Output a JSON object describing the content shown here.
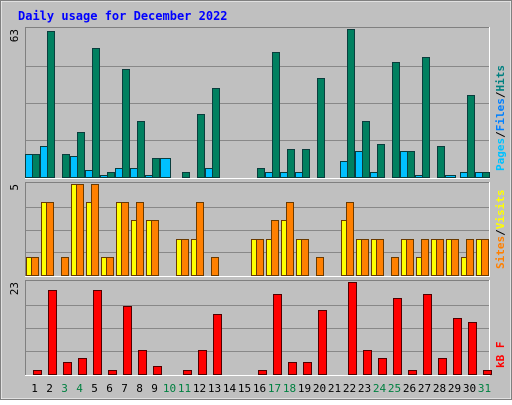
{
  "chart_data": {
    "type": "bar",
    "title": "Daily usage for December 2022",
    "categories": [
      "1",
      "2",
      "3",
      "4",
      "5",
      "6",
      "7",
      "8",
      "9",
      "10",
      "11",
      "12",
      "13",
      "14",
      "15",
      "16",
      "17",
      "18",
      "19",
      "20",
      "21",
      "22",
      "23",
      "24",
      "25",
      "26",
      "27",
      "28",
      "29",
      "30",
      "31"
    ],
    "weekend_days": [
      "3",
      "4",
      "10",
      "11",
      "17",
      "18",
      "24",
      "25",
      "31"
    ],
    "panels": [
      {
        "id": "hits",
        "ymax_label": "63",
        "ymax": 63,
        "legend": [
          {
            "text": "Pages",
            "color": "#00c0ff"
          },
          {
            "text": "/",
            "color": "#000000"
          },
          {
            "text": "Files",
            "color": "#0080ff"
          },
          {
            "text": "/",
            "color": "#000000"
          },
          {
            "text": "Hits",
            "color": "#008080"
          }
        ],
        "series": [
          {
            "name": "Pages",
            "color": "#00c0ff",
            "values": [
              10,
              13,
              0,
              9,
              3,
              1,
              4,
              4,
              1,
              8,
              0,
              0,
              4,
              0,
              0,
              0,
              2,
              2,
              2,
              0,
              0,
              7,
              11,
              2,
              0,
              11,
              1,
              0,
              1,
              2,
              2
            ]
          },
          {
            "name": "Hits",
            "color": "#008060",
            "values": [
              10,
              62,
              10,
              19,
              55,
              2,
              46,
              24,
              8,
              0,
              2,
              27,
              38,
              0,
              0,
              4,
              53,
              12,
              12,
              42,
              0,
              63,
              24,
              14,
              49,
              11,
              51,
              13,
              0,
              35,
              2
            ]
          }
        ]
      },
      {
        "id": "visits",
        "ymax_label": "5",
        "ymax": 5,
        "legend": [
          {
            "text": "Sites",
            "color": "#ff8000"
          },
          {
            "text": "/",
            "color": "#000000"
          },
          {
            "text": "Visits",
            "color": "#ffff00"
          }
        ],
        "series": [
          {
            "name": "Visits",
            "color": "#ffff00",
            "values": [
              1,
              4,
              0,
              5,
              4,
              1,
              4,
              3,
              3,
              0,
              2,
              2,
              0,
              0,
              0,
              2,
              2,
              3,
              2,
              0,
              0,
              3,
              2,
              2,
              0,
              2,
              1,
              2,
              2,
              1,
              2
            ]
          },
          {
            "name": "Sites",
            "color": "#ff8000",
            "values": [
              1,
              4,
              1,
              5,
              5,
              1,
              4,
              4,
              3,
              0,
              2,
              4,
              1,
              0,
              0,
              2,
              3,
              4,
              2,
              1,
              0,
              4,
              2,
              2,
              1,
              2,
              2,
              2,
              2,
              2,
              2
            ]
          }
        ]
      },
      {
        "id": "kbytes",
        "ymax_label": "23",
        "ymax": 23,
        "legend": [
          {
            "text": "kB F",
            "color": "#ff0000"
          }
        ],
        "series": [
          {
            "name": "kB F",
            "color": "#ff0000",
            "values": [
              1,
              21,
              3,
              4,
              21,
              1,
              17,
              6,
              2,
              0,
              1,
              6,
              15,
              0,
              0,
              1,
              20,
              3,
              3,
              16,
              0,
              23,
              6,
              4,
              19,
              1,
              20,
              4,
              14,
              13,
              1
            ]
          }
        ]
      }
    ]
  }
}
